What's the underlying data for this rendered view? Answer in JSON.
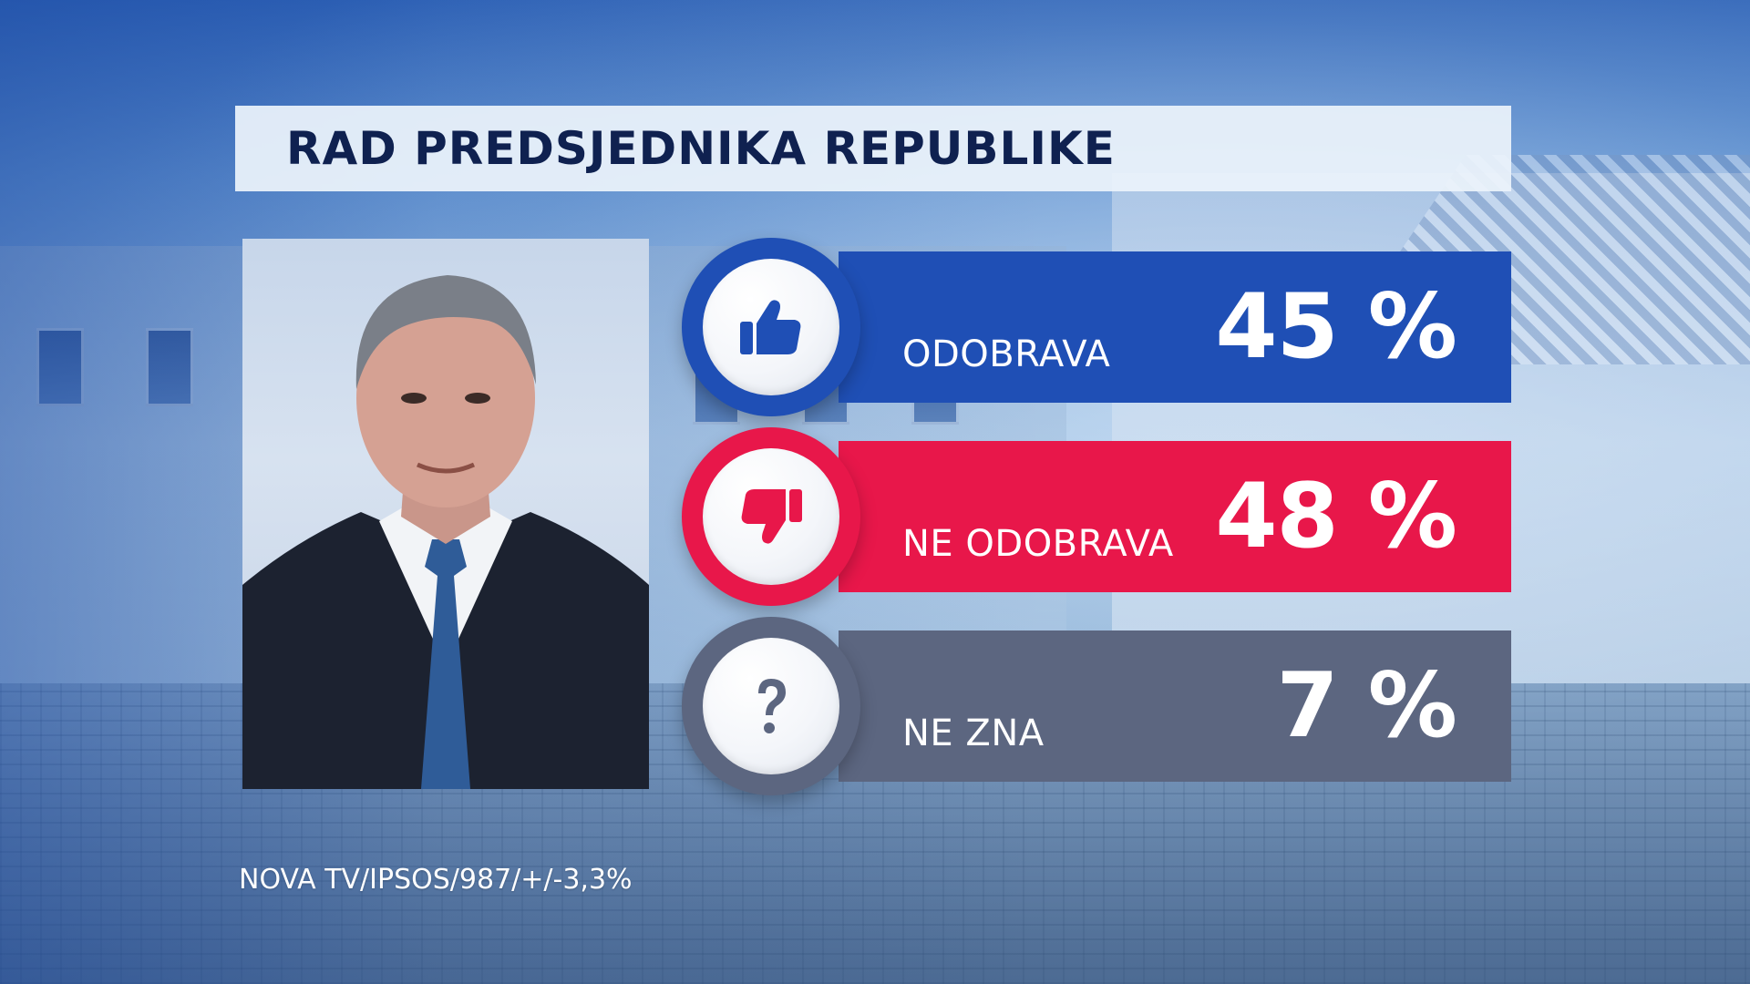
{
  "title": "RAD PREDSJEDNIKA REPUBLIKE",
  "source": "NOVA TV/IPSOS/987/+/-3,3%",
  "colors": {
    "approve": "#1f4fb5",
    "disapprove": "#e8174a",
    "dont_know": "#5c6680"
  },
  "chart_data": {
    "type": "bar",
    "title": "RAD PREDSJEDNIKA REPUBLIKE",
    "categories": [
      "ODOBRAVA",
      "NE ODOBRAVA",
      "NE ZNA"
    ],
    "values": [
      45,
      48,
      7
    ],
    "value_labels": [
      "45 %",
      "48 %",
      "7 %"
    ],
    "icons": [
      "thumbs-up-icon",
      "thumbs-down-icon",
      "question-mark-icon"
    ],
    "ylim": [
      0,
      100
    ],
    "grid": false,
    "legend": "none"
  }
}
